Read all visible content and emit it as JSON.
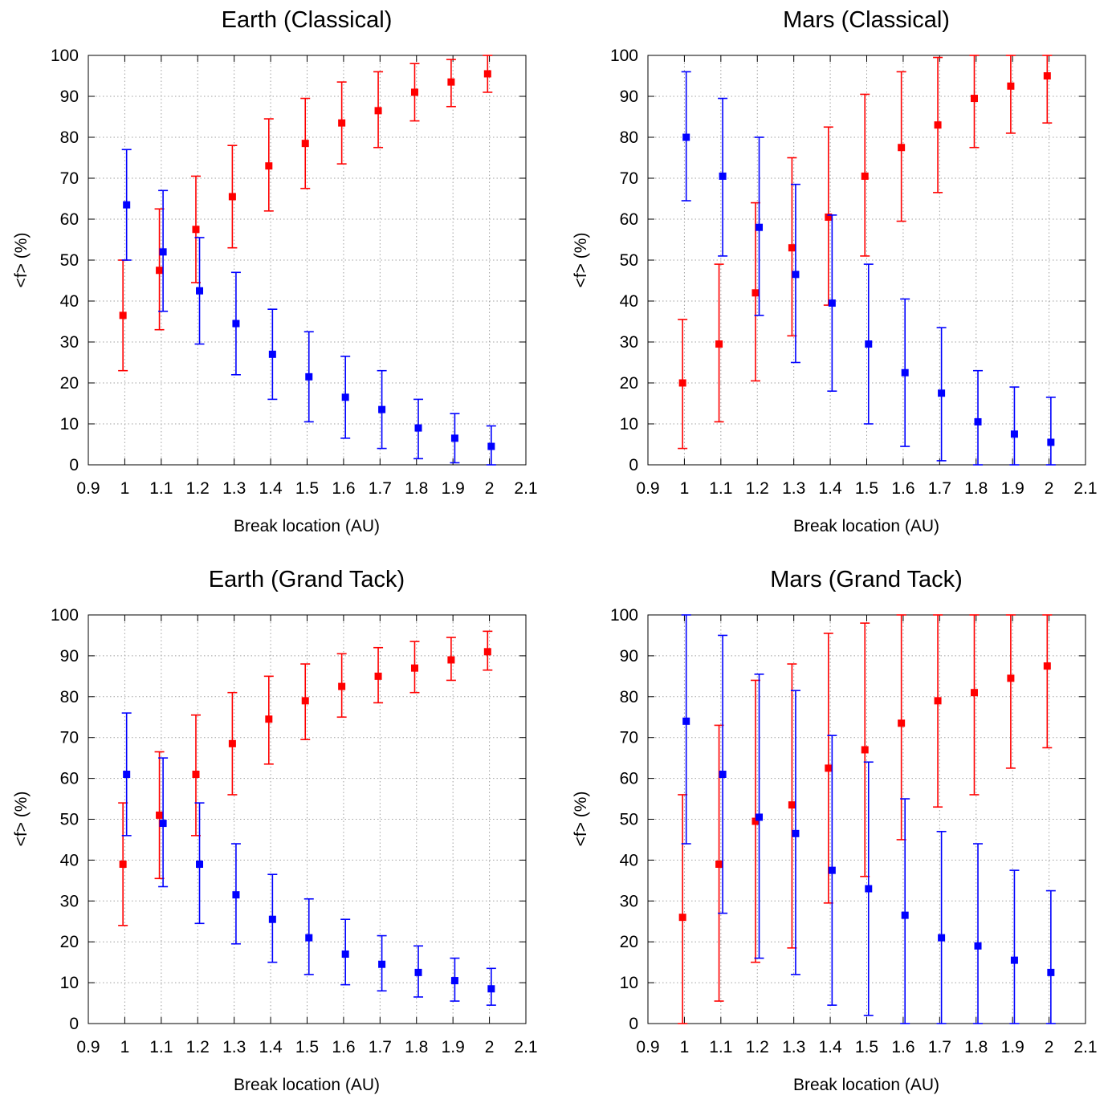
{
  "colors": {
    "red_series": "#ff0000",
    "blue_series": "#0000ff",
    "grid": "#a0a0a0",
    "frame": "#000000"
  },
  "chart_data": [
    {
      "type": "scatter",
      "title": "Earth (Classical)",
      "xlabel": "Break location (AU)",
      "ylabel": "<f> (%)",
      "xlim": [
        0.9,
        2.1
      ],
      "ylim": [
        0,
        100
      ],
      "xticks": [
        "0.9",
        "1",
        "1.1",
        "1.2",
        "1.3",
        "1.4",
        "1.5",
        "1.6",
        "1.7",
        "1.8",
        "1.9",
        "2",
        "2.1"
      ],
      "yticks": [
        "0",
        "10",
        "20",
        "30",
        "40",
        "50",
        "60",
        "70",
        "80",
        "90",
        "100"
      ],
      "grid": true,
      "series": [
        {
          "color": "red",
          "x_offset": -0.005,
          "x": [
            1.0,
            1.1,
            1.2,
            1.3,
            1.4,
            1.5,
            1.6,
            1.7,
            1.8,
            1.9,
            2.0
          ],
          "y": [
            36.5,
            47.5,
            57.5,
            65.5,
            73,
            78.5,
            83.5,
            86.5,
            91,
            93.5,
            95.5
          ],
          "yerr_low": [
            23,
            33,
            44.5,
            53,
            62,
            67.5,
            73.5,
            77.5,
            84,
            87.5,
            91
          ],
          "yerr_high": [
            50,
            62.5,
            70.5,
            78,
            84.5,
            89.5,
            93.5,
            96,
            98,
            99,
            100
          ]
        },
        {
          "color": "blue",
          "x_offset": 0.005,
          "x": [
            1.0,
            1.1,
            1.2,
            1.3,
            1.4,
            1.5,
            1.6,
            1.7,
            1.8,
            1.9,
            2.0
          ],
          "y": [
            63.5,
            52,
            42.5,
            34.5,
            27,
            21.5,
            16.5,
            13.5,
            9,
            6.5,
            4.5
          ],
          "yerr_low": [
            50,
            37.5,
            29.5,
            22,
            16,
            10.5,
            6.5,
            4,
            1.5,
            0.5,
            0
          ],
          "yerr_high": [
            77,
            67,
            55.5,
            47,
            38,
            32.5,
            26.5,
            23,
            16,
            12.5,
            9.5
          ]
        }
      ]
    },
    {
      "type": "scatter",
      "title": "Mars (Classical)",
      "xlabel": "Break location (AU)",
      "ylabel": "<f> (%)",
      "xlim": [
        0.9,
        2.1
      ],
      "ylim": [
        0,
        100
      ],
      "xticks": [
        "0.9",
        "1",
        "1.1",
        "1.2",
        "1.3",
        "1.4",
        "1.5",
        "1.6",
        "1.7",
        "1.8",
        "1.9",
        "2",
        "2.1"
      ],
      "yticks": [
        "0",
        "10",
        "20",
        "30",
        "40",
        "50",
        "60",
        "70",
        "80",
        "90",
        "100"
      ],
      "grid": true,
      "series": [
        {
          "color": "red",
          "x_offset": -0.005,
          "x": [
            1.0,
            1.1,
            1.2,
            1.3,
            1.4,
            1.5,
            1.6,
            1.7,
            1.8,
            1.9,
            2.0
          ],
          "y": [
            20,
            29.5,
            42,
            53,
            60.5,
            70.5,
            77.5,
            83,
            89.5,
            92.5,
            95
          ],
          "yerr_low": [
            4,
            10.5,
            20.5,
            31.5,
            39,
            51,
            59.5,
            66.5,
            77.5,
            81,
            83.5
          ],
          "yerr_high": [
            35.5,
            49,
            64,
            75,
            82.5,
            90.5,
            96,
            99.5,
            100,
            100,
            100
          ]
        },
        {
          "color": "blue",
          "x_offset": 0.005,
          "x": [
            1.0,
            1.1,
            1.2,
            1.3,
            1.4,
            1.5,
            1.6,
            1.7,
            1.8,
            1.9,
            2.0
          ],
          "y": [
            80,
            70.5,
            58,
            46.5,
            39.5,
            29.5,
            22.5,
            17.5,
            10.5,
            7.5,
            5.5
          ],
          "yerr_low": [
            64.5,
            51,
            36.5,
            25,
            18,
            10,
            4.5,
            1,
            0,
            0,
            0
          ],
          "yerr_high": [
            96,
            89.5,
            80,
            68.5,
            61,
            49,
            40.5,
            33.5,
            23,
            19,
            16.5
          ]
        }
      ]
    },
    {
      "type": "scatter",
      "title": "Earth (Grand Tack)",
      "xlabel": "Break location (AU)",
      "ylabel": "<f> (%)",
      "xlim": [
        0.9,
        2.1
      ],
      "ylim": [
        0,
        100
      ],
      "xticks": [
        "0.9",
        "1",
        "1.1",
        "1.2",
        "1.3",
        "1.4",
        "1.5",
        "1.6",
        "1.7",
        "1.8",
        "1.9",
        "2",
        "2.1"
      ],
      "yticks": [
        "0",
        "10",
        "20",
        "30",
        "40",
        "50",
        "60",
        "70",
        "80",
        "90",
        "100"
      ],
      "grid": true,
      "series": [
        {
          "color": "red",
          "x_offset": -0.005,
          "x": [
            1.0,
            1.1,
            1.2,
            1.3,
            1.4,
            1.5,
            1.6,
            1.7,
            1.8,
            1.9,
            2.0
          ],
          "y": [
            39,
            51,
            61,
            68.5,
            74.5,
            79,
            82.5,
            85,
            87,
            89,
            91
          ],
          "yerr_low": [
            24,
            35.5,
            46,
            56,
            63.5,
            69.5,
            75,
            78.5,
            81,
            84,
            86.5
          ],
          "yerr_high": [
            54,
            66.5,
            75.5,
            81,
            85,
            88,
            90.5,
            92,
            93.5,
            94.5,
            96
          ]
        },
        {
          "color": "blue",
          "x_offset": 0.005,
          "x": [
            1.0,
            1.1,
            1.2,
            1.3,
            1.4,
            1.5,
            1.6,
            1.7,
            1.8,
            1.9,
            2.0
          ],
          "y": [
            61,
            49,
            39,
            31.5,
            25.5,
            21,
            17,
            14.5,
            12.5,
            10.5,
            8.5
          ],
          "yerr_low": [
            46,
            33.5,
            24.5,
            19.5,
            15,
            12,
            9.5,
            8,
            6.5,
            5.5,
            4.5
          ],
          "yerr_high": [
            76,
            65,
            54,
            44,
            36.5,
            30.5,
            25.5,
            21.5,
            19,
            16,
            13.5
          ]
        }
      ]
    },
    {
      "type": "scatter",
      "title": "Mars (Grand Tack)",
      "xlabel": "Break location (AU)",
      "ylabel": "<f> (%)",
      "xlim": [
        0.9,
        2.1
      ],
      "ylim": [
        0,
        100
      ],
      "xticks": [
        "0.9",
        "1",
        "1.1",
        "1.2",
        "1.3",
        "1.4",
        "1.5",
        "1.6",
        "1.7",
        "1.8",
        "1.9",
        "2",
        "2.1"
      ],
      "yticks": [
        "0",
        "10",
        "20",
        "30",
        "40",
        "50",
        "60",
        "70",
        "80",
        "90",
        "100"
      ],
      "grid": true,
      "series": [
        {
          "color": "red",
          "x_offset": -0.005,
          "x": [
            1.0,
            1.1,
            1.2,
            1.3,
            1.4,
            1.5,
            1.6,
            1.7,
            1.8,
            1.9,
            2.0
          ],
          "y": [
            26,
            39,
            49.5,
            53.5,
            62.5,
            67,
            73.5,
            79,
            81,
            84.5,
            87.5
          ],
          "yerr_low": [
            0,
            5.5,
            15,
            18.5,
            29.5,
            36,
            45,
            53,
            56,
            62.5,
            67.5
          ],
          "yerr_high": [
            56,
            73,
            84,
            88,
            95.5,
            98,
            100,
            100,
            100,
            100,
            100
          ]
        },
        {
          "color": "blue",
          "x_offset": 0.005,
          "x": [
            1.0,
            1.1,
            1.2,
            1.3,
            1.4,
            1.5,
            1.6,
            1.7,
            1.8,
            1.9,
            2.0
          ],
          "y": [
            74,
            61,
            50.5,
            46.5,
            37.5,
            33,
            26.5,
            21,
            19,
            15.5,
            12.5
          ],
          "yerr_low": [
            44,
            27,
            16,
            12,
            4.5,
            2,
            0,
            0,
            0,
            0,
            0
          ],
          "yerr_high": [
            100,
            95,
            85.5,
            81.5,
            70.5,
            64,
            55,
            47,
            44,
            37.5,
            32.5
          ]
        }
      ]
    }
  ]
}
